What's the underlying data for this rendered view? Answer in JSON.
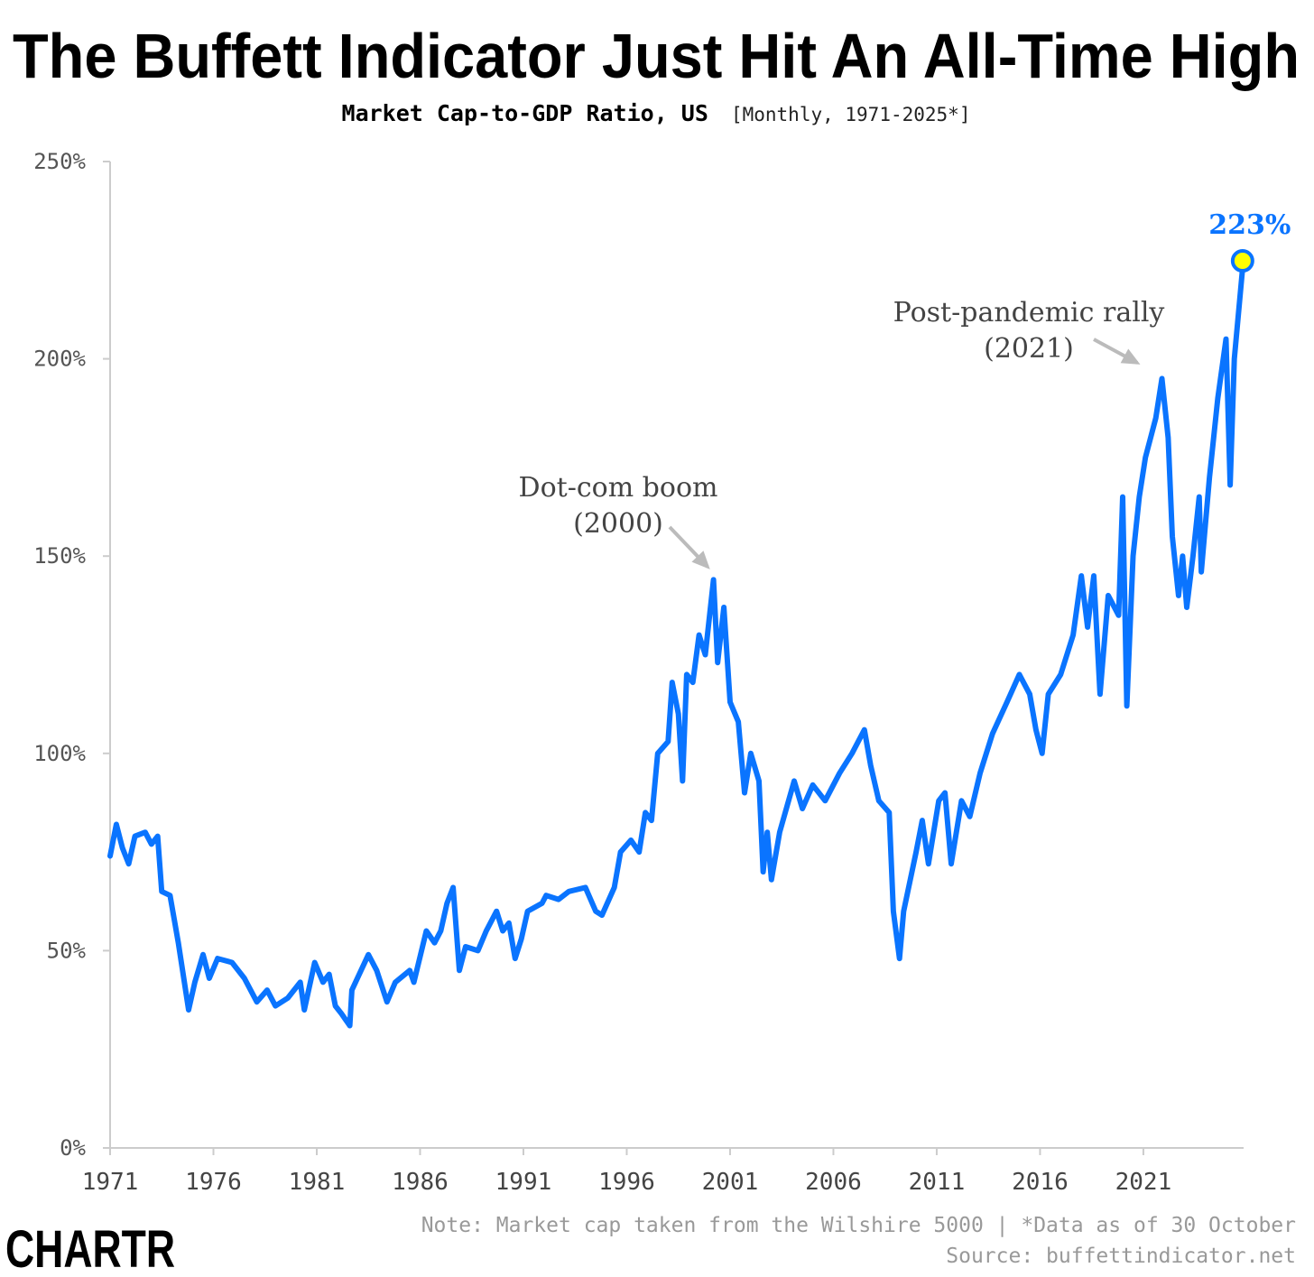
{
  "header": {
    "title": "The Buffett Indicator Just Hit An All-Time High",
    "subtitle_main": "Market Cap-to-GDP Ratio, US",
    "subtitle_detail": "[Monthly, 1971-2025*]"
  },
  "chart_data": {
    "type": "line",
    "title": "The Buffett Indicator Just Hit An All-Time High",
    "subtitle": "Market Cap-to-GDP Ratio, US [Monthly, 1971-2025*]",
    "xlabel": "",
    "ylabel": "",
    "xlim": [
      1971,
      2025.85
    ],
    "ylim": [
      0,
      250
    ],
    "grid": false,
    "line_color": "#0A74FF",
    "x_ticks": [
      1971,
      1976,
      1981,
      1986,
      1991,
      1996,
      2001,
      2006,
      2011,
      2016,
      2021
    ],
    "x_tick_labels": [
      "1971",
      "1976",
      "1981",
      "1986",
      "1991",
      "1996",
      "2001",
      "2006",
      "2011",
      "2016",
      "2021"
    ],
    "y_ticks": [
      0,
      50,
      100,
      150,
      200,
      250
    ],
    "y_tick_labels": [
      "0%",
      "50%",
      "100%",
      "150%",
      "200%",
      "250%"
    ],
    "series": [
      {
        "x": [
          1971.0,
          1971.3,
          1971.6,
          1971.9,
          1972.2,
          1972.7,
          1973.0,
          1973.3,
          1973.5,
          1973.9,
          1974.1,
          1974.3,
          1974.8,
          1975.1,
          1975.5,
          1975.8,
          1976.2,
          1976.9,
          1977.5,
          1978.1,
          1978.6,
          1979.0,
          1979.6,
          1980.2,
          1980.4,
          1980.9,
          1981.3,
          1981.6,
          1981.9,
          1982.2,
          1982.6,
          1982.7,
          1983.5,
          1983.9,
          1984.4,
          1984.8,
          1985.5,
          1985.7,
          1986.3,
          1986.7,
          1987.0,
          1987.3,
          1987.6,
          1987.9,
          1988.2,
          1988.8,
          1989.2,
          1989.7,
          1990.0,
          1990.3,
          1990.6,
          1990.9,
          1991.2,
          1991.9,
          1992.1,
          1992.7,
          1993.2,
          1994.0,
          1994.5,
          1994.8,
          1995.4,
          1995.7,
          1996.2,
          1996.6,
          1996.9,
          1997.2,
          1997.5,
          1998.0,
          1998.2,
          1998.5,
          1998.7,
          1998.9,
          1999.2,
          1999.5,
          1999.8,
          2000.2,
          2000.4,
          2000.7,
          2001.0,
          2001.4,
          2001.7,
          2002.0,
          2002.4,
          2002.6,
          2002.8,
          2003.0,
          2003.4,
          2004.1,
          2004.5,
          2005.0,
          2005.6,
          2006.3,
          2006.9,
          2007.5,
          2007.8,
          2008.2,
          2008.7,
          2008.9,
          2009.2,
          2009.4,
          2010.0,
          2010.3,
          2010.6,
          2011.1,
          2011.4,
          2011.7,
          2012.2,
          2012.6,
          2013.1,
          2013.7,
          2014.4,
          2015.0,
          2015.5,
          2015.8,
          2016.1,
          2016.4,
          2017.0,
          2017.6,
          2018.0,
          2018.3,
          2018.6,
          2018.9,
          2019.3,
          2019.8,
          2020.0,
          2020.2,
          2020.5,
          2020.8,
          2021.1,
          2021.6,
          2021.9,
          2022.2,
          2022.4,
          2022.7,
          2022.9,
          2023.1,
          2023.4,
          2023.7,
          2023.8,
          2024.2,
          2024.6,
          2025.0,
          2025.2,
          2025.4,
          2025.8
        ],
        "values": [
          74,
          82,
          76,
          72,
          79,
          80,
          77,
          79,
          65,
          64,
          58,
          52,
          35,
          42,
          49,
          43,
          48,
          47,
          43,
          37,
          40,
          36,
          38,
          42,
          35,
          47,
          42,
          44,
          36,
          34,
          31,
          40,
          49,
          45,
          37,
          42,
          45,
          42,
          55,
          52,
          55,
          62,
          66,
          45,
          51,
          50,
          55,
          60,
          55,
          57,
          48,
          53,
          60,
          62,
          64,
          63,
          65,
          66,
          60,
          59,
          66,
          75,
          78,
          75,
          85,
          83,
          100,
          103,
          118,
          110,
          93,
          120,
          118,
          130,
          125,
          144,
          123,
          137,
          113,
          108,
          90,
          100,
          93,
          70,
          80,
          68,
          80,
          93,
          86,
          92,
          88,
          95,
          100,
          106,
          97,
          88,
          85,
          60,
          48,
          60,
          75,
          83,
          72,
          88,
          90,
          72,
          88,
          84,
          95,
          105,
          113,
          120,
          115,
          106,
          100,
          115,
          120,
          130,
          145,
          132,
          145,
          115,
          140,
          135,
          165,
          112,
          150,
          165,
          175,
          185,
          195,
          180,
          155,
          140,
          150,
          137,
          150,
          165,
          146,
          170,
          190,
          205,
          168,
          200,
          223
        ]
      }
    ],
    "highlight": {
      "x": 2025.8,
      "value": 223,
      "label": "223%",
      "marker_color": "#FFFF00"
    },
    "annotations": [
      {
        "line1": "Dot-com boom",
        "line2": "(2000)",
        "x": 2000.2,
        "value": 144
      },
      {
        "line1": "Post-pandemic rally",
        "line2": "(2021)",
        "x": 2021.0,
        "value": 197
      }
    ]
  },
  "footer": {
    "note": "Note: Market cap taken from the Wilshire 5000 | *Data as of 30 October",
    "source": "Source: buffettindicator.net",
    "logo": "CHARTR"
  }
}
